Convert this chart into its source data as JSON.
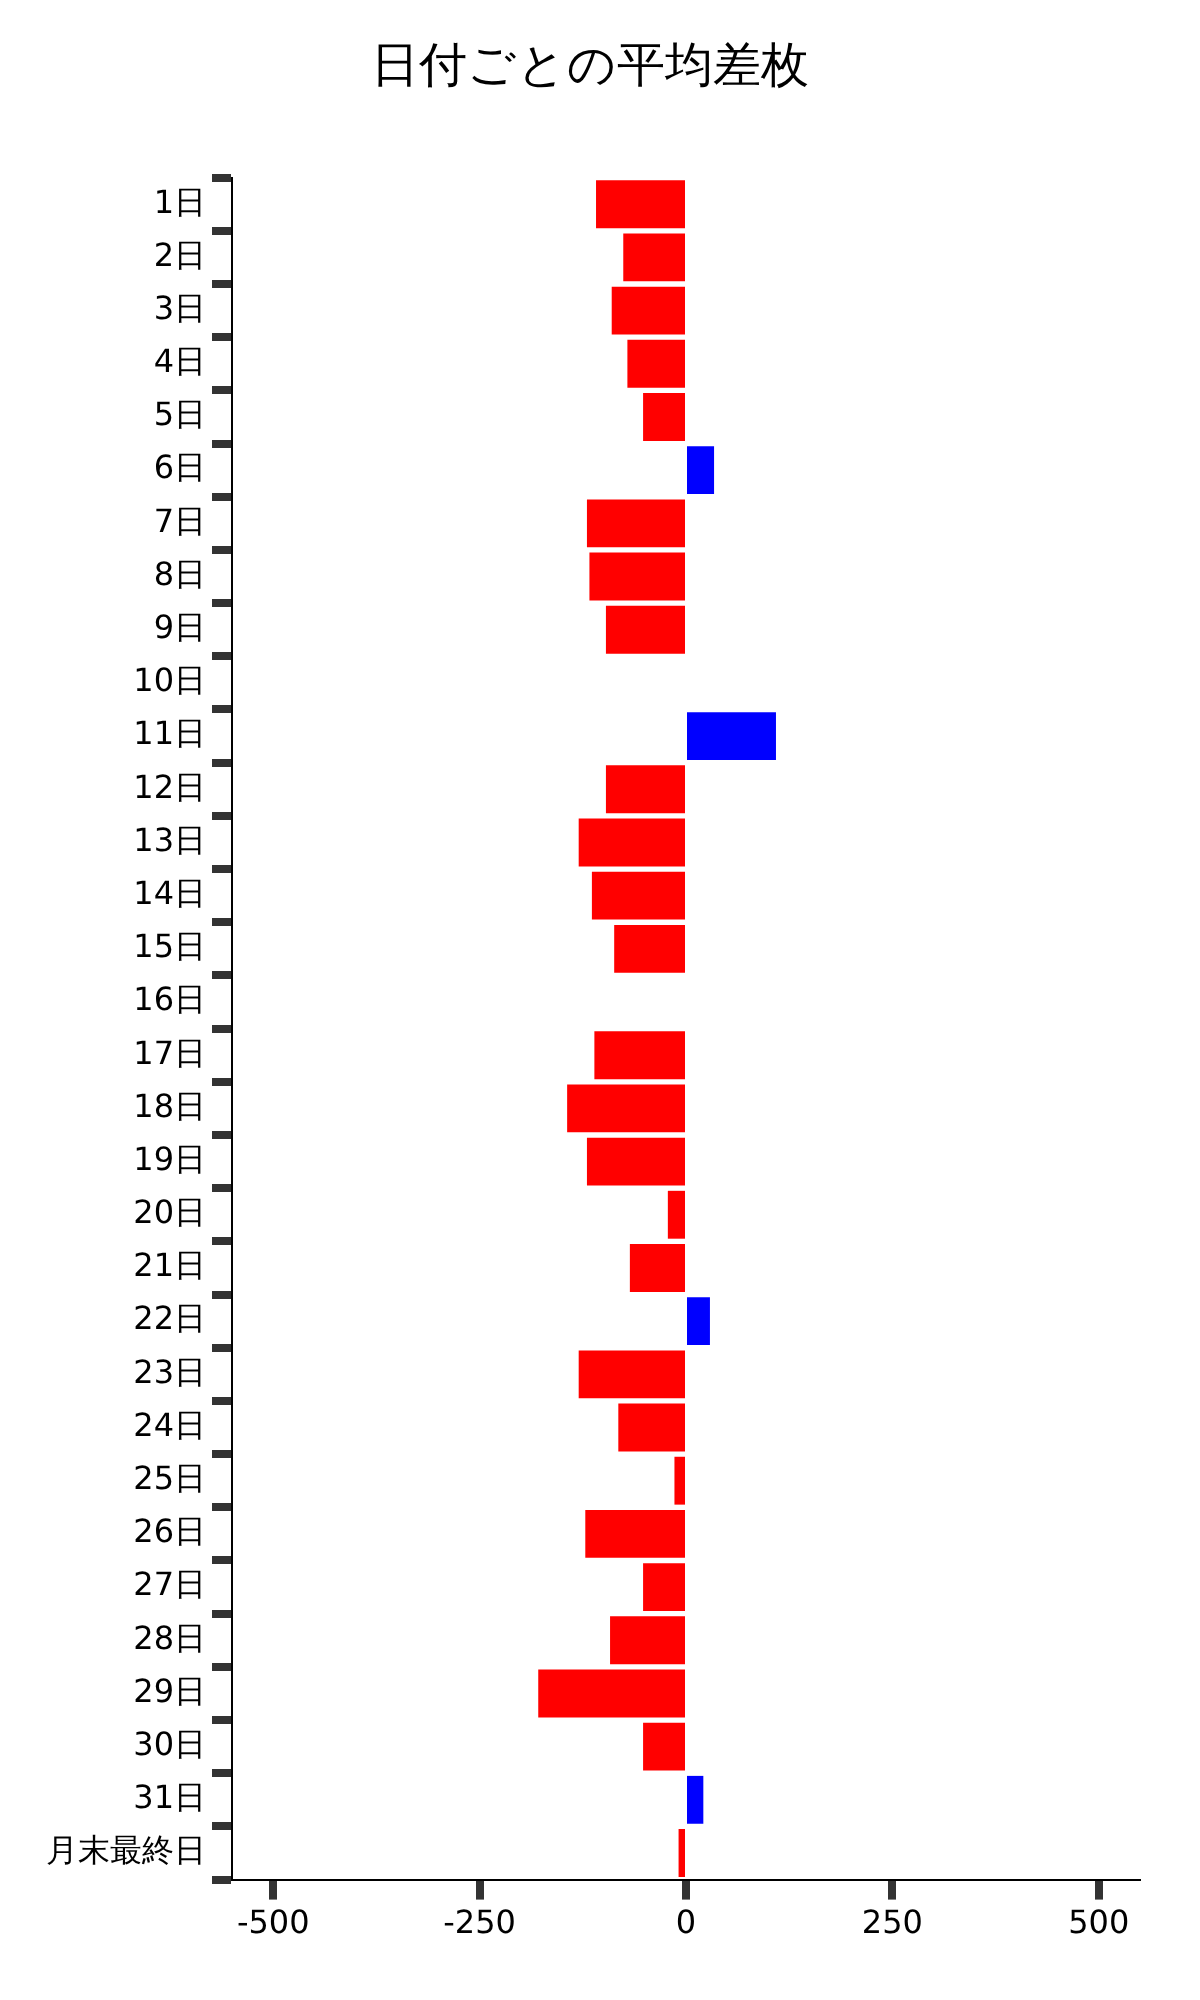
{
  "chart_data": {
    "type": "bar",
    "orientation": "horizontal",
    "title": "日付ごとの平均差枚",
    "categories": [
      "1日",
      "2日",
      "3日",
      "4日",
      "5日",
      "6日",
      "7日",
      "8日",
      "9日",
      "10日",
      "11日",
      "12日",
      "13日",
      "14日",
      "15日",
      "16日",
      "17日",
      "18日",
      "19日",
      "20日",
      "21日",
      "22日",
      "23日",
      "24日",
      "25日",
      "26日",
      "27日",
      "28日",
      "29日",
      "30日",
      "31日",
      "月末最終日"
    ],
    "values": [
      -109,
      -76,
      -90,
      -71,
      -52,
      34,
      -120,
      -117,
      -97,
      0,
      109,
      -97,
      -130,
      -114,
      -87,
      null,
      -111,
      -144,
      -120,
      -22,
      -68,
      29,
      -130,
      -82,
      -14,
      -122,
      -52,
      -92,
      -179,
      -52,
      21,
      -9
    ],
    "colors": [
      "#ff0000",
      "#ff0000",
      "#ff0000",
      "#ff0000",
      "#ff0000",
      "#0000ff",
      "#ff0000",
      "#ff0000",
      "#ff0000",
      "#ff0000",
      "#0000ff",
      "#ff0000",
      "#ff0000",
      "#ff0000",
      "#ff0000",
      "#ff0000",
      "#ff0000",
      "#ff0000",
      "#ff0000",
      "#ff0000",
      "#ff0000",
      "#0000ff",
      "#ff0000",
      "#ff0000",
      "#ff0000",
      "#ff0000",
      "#ff0000",
      "#ff0000",
      "#ff0000",
      "#ff0000",
      "#0000ff",
      "#ff0000"
    ],
    "xlim": [
      -550,
      550
    ],
    "xticks": [
      -500,
      -250,
      0,
      250,
      500
    ],
    "grid": false,
    "legend": false
  }
}
